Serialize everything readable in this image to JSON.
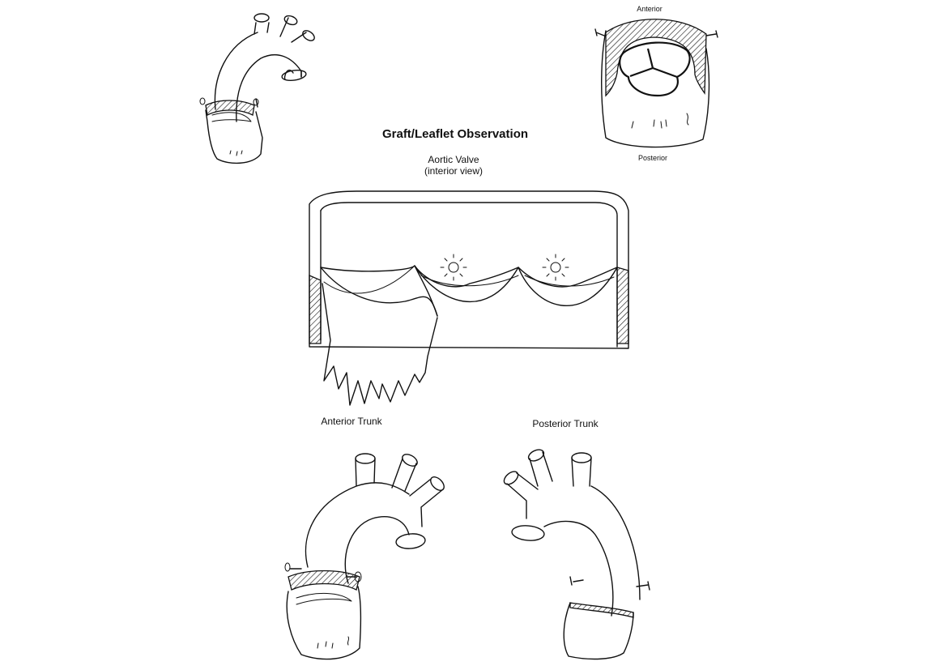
{
  "title": "Graft/Leaflet Observation",
  "valve_view": {
    "line1": "Aortic Valve",
    "line2": "(interior view)"
  },
  "cross_section": {
    "top_label": "Anterior",
    "bottom_label": "Posterior"
  },
  "anterior_trunk_label": "Anterior Trunk",
  "posterior_trunk_label": "Posterior Trunk"
}
